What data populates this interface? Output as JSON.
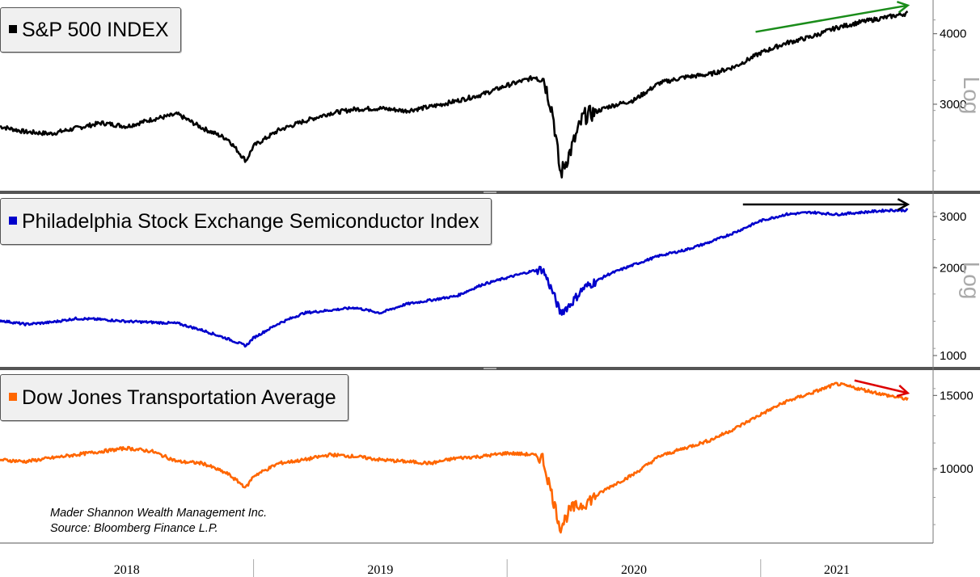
{
  "chart_data": [
    {
      "type": "line",
      "title": "S&P 500 INDEX",
      "scale": "log",
      "scale_label": "Log",
      "color": "#000000",
      "ylim": [
        2150,
        4500
      ],
      "yticks": [
        3000,
        4000
      ],
      "ytick_labels": [
        "3000",
        "4000"
      ],
      "x": [
        2018.0,
        2018.1,
        2018.2,
        2018.3,
        2018.4,
        2018.5,
        2018.6,
        2018.7,
        2018.8,
        2018.9,
        2018.97,
        2019.0,
        2019.1,
        2019.2,
        2019.3,
        2019.4,
        2019.5,
        2019.6,
        2019.7,
        2019.8,
        2019.9,
        2020.0,
        2020.1,
        2020.14,
        2020.18,
        2020.21,
        2020.25,
        2020.3,
        2020.4,
        2020.5,
        2020.6,
        2020.7,
        2020.8,
        2020.9,
        2021.0,
        2021.1,
        2021.2,
        2021.3,
        2021.4,
        2021.5,
        2021.58
      ],
      "values": [
        2740,
        2680,
        2660,
        2720,
        2780,
        2740,
        2820,
        2880,
        2720,
        2600,
        2380,
        2530,
        2700,
        2800,
        2890,
        2940,
        2950,
        2920,
        2970,
        3040,
        3120,
        3240,
        3340,
        3380,
        2900,
        2250,
        2480,
        2850,
        2970,
        3050,
        3270,
        3350,
        3390,
        3500,
        3700,
        3850,
        3950,
        4100,
        4200,
        4280,
        4350
      ],
      "trend_arrow": {
        "color": "#1a8c1a",
        "x": [
          2020.98,
          2021.58
        ],
        "y": [
          4030,
          4490
        ]
      }
    },
    {
      "type": "line",
      "title": "Philadelphia Stock Exchange Semiconductor Index",
      "scale": "log",
      "scale_label": "Log",
      "color": "#0000cc",
      "ylim": [
        950,
        3450
      ],
      "yticks": [
        1000,
        2000,
        3000
      ],
      "ytick_labels": [
        "1000",
        "2000",
        "3000"
      ],
      "x": [
        2018.0,
        2018.1,
        2018.2,
        2018.3,
        2018.4,
        2018.5,
        2018.6,
        2018.7,
        2018.8,
        2018.9,
        2018.97,
        2019.0,
        2019.1,
        2019.2,
        2019.3,
        2019.4,
        2019.5,
        2019.6,
        2019.7,
        2019.8,
        2019.9,
        2020.0,
        2020.1,
        2020.14,
        2020.18,
        2020.21,
        2020.25,
        2020.3,
        2020.4,
        2020.5,
        2020.6,
        2020.7,
        2020.8,
        2020.9,
        2021.0,
        2021.1,
        2021.2,
        2021.3,
        2021.4,
        2021.5,
        2021.58
      ],
      "values": [
        1320,
        1280,
        1300,
        1340,
        1330,
        1310,
        1300,
        1290,
        1220,
        1140,
        1080,
        1150,
        1290,
        1400,
        1430,
        1460,
        1400,
        1500,
        1550,
        1600,
        1750,
        1850,
        1950,
        1980,
        1650,
        1400,
        1500,
        1700,
        1900,
        2050,
        2200,
        2300,
        2450,
        2650,
        2900,
        3050,
        3100,
        3050,
        3100,
        3150,
        3150
      ],
      "trend_arrow": {
        "color": "#000000",
        "x": [
          2020.93,
          2021.58
        ],
        "y": [
          3300,
          3300
        ]
      }
    },
    {
      "type": "line",
      "title": "Dow Jones Transportation Average",
      "scale": "log",
      "scale_label": "",
      "color": "#ff6600",
      "ylim": [
        6800,
        16800
      ],
      "yticks": [
        10000,
        15000
      ],
      "ytick_labels": [
        "10000",
        "15000"
      ],
      "x": [
        2018.0,
        2018.1,
        2018.2,
        2018.3,
        2018.4,
        2018.5,
        2018.6,
        2018.7,
        2018.8,
        2018.9,
        2018.97,
        2019.0,
        2019.1,
        2019.2,
        2019.3,
        2019.4,
        2019.5,
        2019.6,
        2019.7,
        2019.8,
        2019.9,
        2020.0,
        2020.1,
        2020.14,
        2020.18,
        2020.21,
        2020.25,
        2020.3,
        2020.4,
        2020.5,
        2020.6,
        2020.7,
        2020.8,
        2020.9,
        2021.0,
        2021.1,
        2021.2,
        2021.3,
        2021.4,
        2021.5,
        2021.58
      ],
      "values": [
        10500,
        10400,
        10600,
        10800,
        11000,
        11200,
        11000,
        10400,
        10300,
        9700,
        9000,
        9600,
        10300,
        10500,
        10800,
        10700,
        10500,
        10400,
        10300,
        10600,
        10700,
        10900,
        10800,
        10600,
        8500,
        7200,
        8000,
        8200,
        9000,
        9700,
        10700,
        11200,
        11700,
        12500,
        13500,
        14500,
        15200,
        16000,
        15500,
        15000,
        14700
      ],
      "trend_arrow": {
        "color": "#dd0000",
        "x": [
          2021.37,
          2021.58
        ],
        "y": [
          16300,
          15200
        ]
      }
    }
  ],
  "x_axis": {
    "labels": [
      "2018",
      "2019",
      "2020",
      "2021"
    ],
    "label_positions": [
      2018.5,
      2019.5,
      2020.5,
      2021.3
    ],
    "dividers": [
      2019.0,
      2020.0,
      2021.0
    ],
    "range": [
      2018.0,
      2021.68
    ]
  },
  "credits": {
    "line1": "Mader Shannon Wealth Management Inc.",
    "line2": "Source: Bloomberg Finance L.P."
  }
}
